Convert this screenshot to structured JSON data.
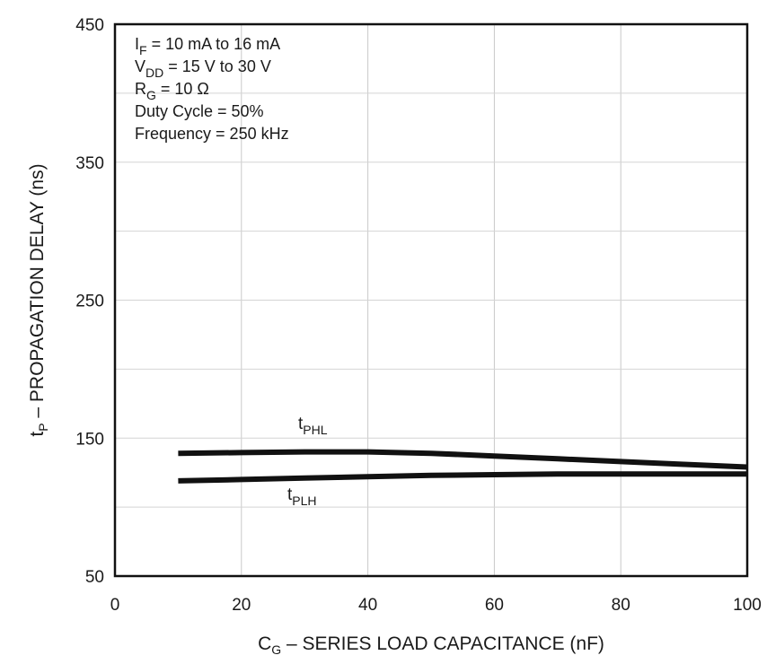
{
  "chart_data": {
    "type": "line",
    "title": "",
    "xlabel": {
      "main": "C",
      "sub": "G",
      "rest": " – SERIES LOAD CAPACITANCE (nF)"
    },
    "ylabel": {
      "main": "t",
      "sub": "P",
      "rest": " – PROPAGATION DELAY (ns)"
    },
    "xlim": [
      0,
      100
    ],
    "ylim": [
      50,
      450
    ],
    "xticks": [
      "0",
      "20",
      "40",
      "60",
      "80",
      "100"
    ],
    "yticks": [
      "50",
      "150",
      "250",
      "350",
      "450"
    ],
    "grid": true,
    "conditions": [
      {
        "main": "I",
        "sub": "F",
        "rest": " = 10 mA to 16 mA"
      },
      {
        "main": "V",
        "sub": "DD",
        "rest": " = 15 V to 30 V"
      },
      {
        "main": "R",
        "sub": "G",
        "rest": " = 10 Ω"
      },
      {
        "main": "Duty Cycle = 50%",
        "sub": "",
        "rest": ""
      },
      {
        "main": "Frequency = 250 kHz",
        "sub": "",
        "rest": ""
      }
    ],
    "series": [
      {
        "name": "tPHL",
        "label": {
          "main": "t",
          "sub": "PHL"
        },
        "color": "#111111",
        "x": [
          10,
          20,
          30,
          40,
          50,
          60,
          70,
          80,
          90,
          100
        ],
        "y": [
          139,
          139.5,
          140,
          140,
          139,
          137,
          135,
          133,
          131,
          129
        ]
      },
      {
        "name": "tPLH",
        "label": {
          "main": "t",
          "sub": "PLH"
        },
        "color": "#111111",
        "x": [
          10,
          20,
          30,
          40,
          50,
          60,
          70,
          80,
          90,
          100
        ],
        "y": [
          119,
          120,
          121,
          122,
          123,
          123.5,
          124,
          124,
          124,
          124
        ]
      }
    ]
  }
}
